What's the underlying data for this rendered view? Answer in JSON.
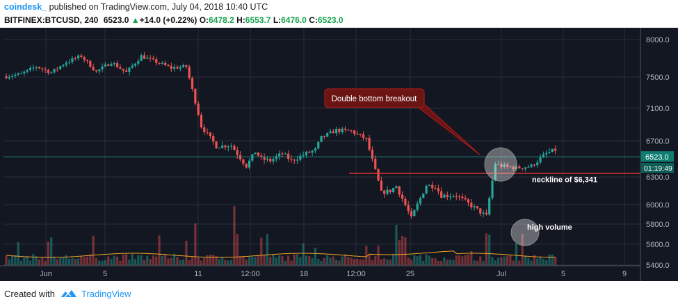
{
  "header": {
    "author": "coindesk_",
    "published_text": "published on TradingView.com, July 04, 2018 10:40 UTC",
    "symbol": "BITFINEX:BTCUSD, 240",
    "last": "6523.0",
    "change_icon": "up-triangle-icon",
    "change": "+14.0 (+0.22%)",
    "o_label": "O:",
    "o": "6478.2",
    "h_label": "H:",
    "h": "6553.7",
    "l_label": "L:",
    "l": "6476.0",
    "c_label": "C:",
    "c": "6523.0"
  },
  "footer": {
    "created_with": "Created with",
    "brand": "TradingView",
    "logo_icon": "tradingview-logo-icon"
  },
  "colors": {
    "background": "#131722",
    "grid": "#2a2e39",
    "up": "#26a69a",
    "down": "#ef5350",
    "neckline": "#e53935",
    "last_price_label": "#0f7c72",
    "ma_line": "#f5a623",
    "annotation_fill": "#6b1414"
  },
  "chart_data": {
    "type": "candlestick",
    "symbol": "BITFINEX:BTCUSD",
    "interval": "240",
    "ylim": [
      5380,
      8060
    ],
    "y_ticks": [
      5400,
      5600,
      5800,
      6000,
      6300,
      6700,
      7100,
      7500,
      8000
    ],
    "y_tick_labels": [
      "5400.0",
      "5600.0",
      "5800.0",
      "6000.0",
      "6300.0",
      "6700.0",
      "7100.0",
      "7500.0",
      "8000.0"
    ],
    "x_tick_labels": [
      "Jun",
      "5",
      "11",
      "12:00",
      "18",
      "12:00",
      "25",
      "Jul",
      "5",
      "9"
    ],
    "price_path": {
      "x": [
        0,
        5,
        10,
        15,
        20,
        25,
        30,
        35,
        40,
        45,
        50,
        55,
        60,
        65,
        70,
        75,
        80,
        83,
        85,
        88,
        92,
        95,
        100,
        103,
        105,
        110,
        115,
        120,
        125,
        128,
        130,
        135,
        140,
        143,
        145,
        150,
        160,
        163,
        165,
        170,
        175,
        180,
        183
      ],
      "close": [
        7510,
        7540,
        7640,
        7560,
        7700,
        7780,
        7570,
        7700,
        7560,
        7780,
        7700,
        7620,
        7640,
        6880,
        6640,
        6650,
        6420,
        6580,
        6500,
        6480,
        6560,
        6480,
        6560,
        6600,
        6740,
        6830,
        6820,
        6720,
        6130,
        6150,
        6200,
        5860,
        6210,
        6200,
        6100,
        6100,
        5880,
        6450,
        6420,
        6400,
        6420,
        6560,
        6600
      ]
    },
    "volume_max": 100,
    "neckline": {
      "value": 6341,
      "label": "neckline of $6,341"
    },
    "annotations": [
      {
        "text": "Double bottom breakout",
        "type": "callout"
      },
      {
        "text": "high volume",
        "type": "highlight"
      }
    ],
    "last_price": {
      "value": "6523.0",
      "timer": "01:19:49"
    }
  }
}
